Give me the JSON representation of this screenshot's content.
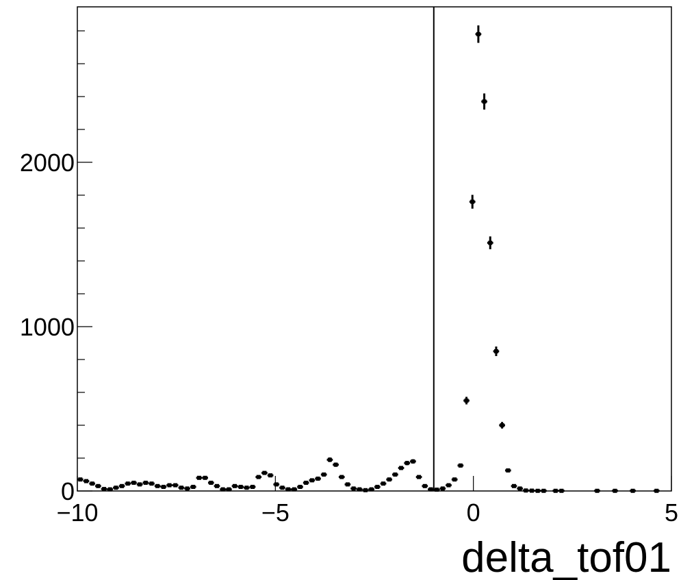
{
  "chart_data": {
    "type": "histogram",
    "x_label": "delta_tof01",
    "bins": [
      -10,
      -9.85,
      -9.7,
      -9.55,
      -9.4,
      -9.25,
      -9.1,
      -8.95,
      -8.8,
      -8.65,
      -8.5,
      -8.35,
      -8.2,
      -8.05,
      -7.9,
      -7.75,
      -7.6,
      -7.45,
      -7.3,
      -7.15,
      -7,
      -6.85,
      -6.7,
      -6.55,
      -6.4,
      -6.25,
      -6.1,
      -5.95,
      -5.8,
      -5.65,
      -5.5,
      -5.35,
      -5.2,
      -5.05,
      -4.9,
      -4.75,
      -4.6,
      -4.45,
      -4.3,
      -4.15,
      -4,
      -3.85,
      -3.7,
      -3.55,
      -3.4,
      -3.25,
      -3.1,
      -2.95,
      -2.8,
      -2.65,
      -2.5,
      -2.35,
      -2.2,
      -2.05,
      -1.9,
      -1.75,
      -1.6,
      -1.45,
      -1.3,
      -1.15,
      -1,
      -0.85,
      -0.7,
      -0.55,
      -0.4,
      -0.25,
      -0.1,
      0.05,
      0.2,
      0.35,
      0.5,
      0.65,
      0.8,
      0.95,
      1.1,
      1.25,
      1.4,
      1.55,
      1.7,
      1.85,
      2,
      2.15,
      2.3,
      2.45,
      2.6,
      2.75,
      2.9,
      3.05,
      3.2,
      3.35,
      3.5,
      3.65,
      3.8,
      3.95,
      4.1,
      4.25,
      4.4,
      4.55,
      4.7,
      4.85,
      5
    ],
    "values": [
      70,
      60,
      45,
      30,
      12,
      10,
      20,
      30,
      45,
      50,
      40,
      50,
      45,
      30,
      25,
      35,
      35,
      20,
      15,
      25,
      80,
      80,
      50,
      30,
      10,
      10,
      30,
      25,
      20,
      25,
      85,
      110,
      95,
      40,
      20,
      10,
      10,
      25,
      50,
      65,
      75,
      100,
      190,
      160,
      85,
      40,
      15,
      10,
      5,
      10,
      25,
      45,
      70,
      100,
      140,
      170,
      180,
      85,
      30,
      10,
      8,
      15,
      35,
      70,
      155,
      550,
      1760,
      2780,
      2370,
      1510,
      850,
      400,
      125,
      30,
      15,
      3,
      2,
      1,
      1,
      null,
      1,
      1,
      null,
      null,
      null,
      null,
      null,
      1,
      null,
      null,
      1,
      null,
      null,
      1,
      null,
      null,
      null,
      1,
      null,
      null
    ],
    "errors": [
      8,
      8,
      7,
      5,
      3,
      3,
      4,
      5,
      7,
      7,
      6,
      7,
      7,
      5,
      5,
      6,
      6,
      4,
      4,
      5,
      9,
      9,
      7,
      5,
      3,
      3,
      5,
      5,
      4,
      5,
      9,
      10,
      10,
      6,
      4,
      3,
      3,
      5,
      7,
      8,
      9,
      10,
      14,
      13,
      9,
      6,
      4,
      3,
      2,
      3,
      5,
      7,
      8,
      10,
      12,
      13,
      13,
      9,
      5,
      3,
      3,
      4,
      6,
      8,
      12,
      23,
      42,
      53,
      49,
      39,
      29,
      20,
      11,
      5,
      4,
      2,
      1,
      1,
      1,
      null,
      1,
      1,
      null,
      null,
      null,
      null,
      null,
      1,
      null,
      null,
      1,
      null,
      null,
      1,
      null,
      null,
      null,
      1,
      null,
      null
    ],
    "color": "#000000",
    "cut_line": -1,
    "xlim": [
      -10,
      5
    ],
    "ylim": [
      0,
      2946
    ],
    "xticks": [
      {
        "value": -10,
        "label": "−10"
      },
      {
        "value": -5,
        "label": "−5"
      },
      0,
      5
    ],
    "yticks": [
      0,
      1000,
      2000
    ],
    "yminorticks": [
      200,
      400,
      600,
      800,
      1200,
      1400,
      1600,
      1800,
      2200,
      2400,
      2600,
      2800
    ]
  }
}
